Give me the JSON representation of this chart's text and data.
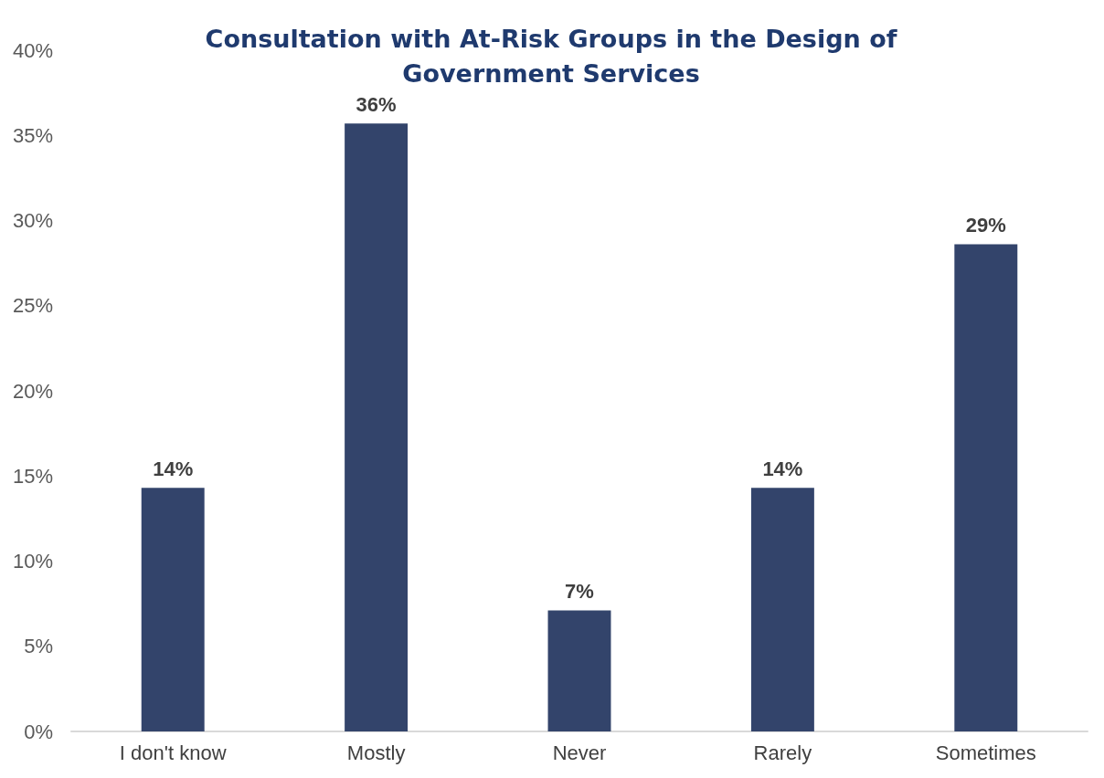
{
  "chart_data": {
    "type": "bar",
    "title": "Consultation with At-Risk Groups in the Design of\nGovernment Services",
    "categories": [
      "I don't know",
      "Mostly",
      "Never",
      "Rarely",
      "Sometimes"
    ],
    "values": [
      14.3,
      35.7,
      7.1,
      14.3,
      28.6
    ],
    "value_labels": [
      "14%",
      "36%",
      "7%",
      "14%",
      "29%"
    ],
    "color": "#33446b",
    "ylim": [
      0,
      40
    ],
    "yticks": [
      {
        "value": 0,
        "label": "0%"
      },
      {
        "value": 5,
        "label": "5%"
      },
      {
        "value": 10,
        "label": "10%"
      },
      {
        "value": 15,
        "label": "15%"
      },
      {
        "value": 20,
        "label": "20%"
      },
      {
        "value": 25,
        "label": "25%"
      },
      {
        "value": 30,
        "label": "30%"
      },
      {
        "value": 35,
        "label": "35%"
      },
      {
        "value": 40,
        "label": "40%"
      }
    ],
    "grid": false
  }
}
